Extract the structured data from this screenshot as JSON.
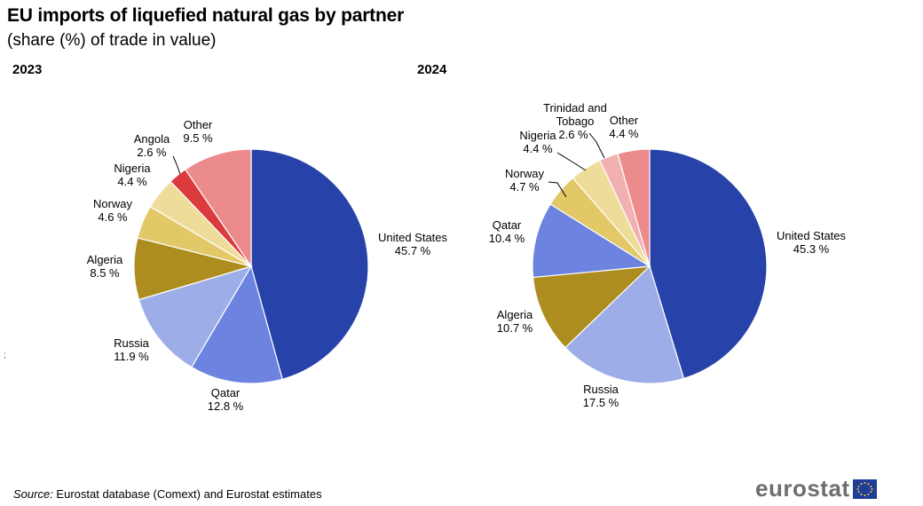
{
  "title": "EU imports of liquefied natural gas by partner",
  "subtitle": "(share (%) of trade in value)",
  "source_label": "Source:",
  "source_text": " Eurostat database (Comext) and Eurostat estimates",
  "logo_text": "eurostat",
  "stray_mark": ";",
  "chart_data": [
    {
      "type": "pie",
      "title": "2023",
      "slices": [
        {
          "name": "United States",
          "value": 45.7,
          "label": "45.7 %",
          "color": "#2742a8"
        },
        {
          "name": "Qatar",
          "value": 12.8,
          "label": "12.8 %",
          "color": "#6c84e0"
        },
        {
          "name": "Russia",
          "value": 11.9,
          "label": "11.9 %",
          "color": "#9dade8"
        },
        {
          "name": "Algeria",
          "value": 8.5,
          "label": "8.5 %",
          "color": "#ad8d1f"
        },
        {
          "name": "Norway",
          "value": 4.6,
          "label": "4.6 %",
          "color": "#e2c866"
        },
        {
          "name": "Nigeria",
          "value": 4.4,
          "label": "4.4 %",
          "color": "#eedd9a"
        },
        {
          "name": "Angola",
          "value": 2.6,
          "label": "2.6 %",
          "color": "#dc3b3d"
        },
        {
          "name": "Other",
          "value": 9.5,
          "label": "9.5 %",
          "color": "#ec8b8b"
        }
      ]
    },
    {
      "type": "pie",
      "title": "2024",
      "slices": [
        {
          "name": "United States",
          "value": 45.3,
          "label": "45.3 %",
          "color": "#2742a8"
        },
        {
          "name": "Russia",
          "value": 17.5,
          "label": "17.5 %",
          "color": "#9dade8"
        },
        {
          "name": "Algeria",
          "value": 10.7,
          "label": "10.7 %",
          "color": "#ad8d1f"
        },
        {
          "name": "Qatar",
          "value": 10.4,
          "label": "10.4 %",
          "color": "#6c84e0"
        },
        {
          "name": "Norway",
          "value": 4.7,
          "label": "4.7 %",
          "color": "#e2c866"
        },
        {
          "name": "Nigeria",
          "value": 4.4,
          "label": "4.4 %",
          "color": "#eedd9a"
        },
        {
          "name": "Trinidad and Tobago",
          "value": 2.6,
          "label": "2.6 %",
          "color": "#f2b1b1"
        },
        {
          "name": "Other",
          "value": 4.4,
          "label": "4.4 %",
          "color": "#ec8b8b"
        }
      ]
    }
  ]
}
